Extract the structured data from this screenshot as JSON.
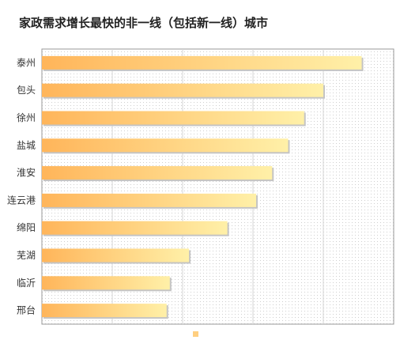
{
  "chart_data": {
    "type": "bar",
    "orientation": "horizontal",
    "title": "家政需求增长最快的非一线（包括新一线）城市",
    "categories": [
      "泰州",
      "包头",
      "徐州",
      "盐城",
      "淮安",
      "连云港",
      "绵阳",
      "芜湖",
      "临沂",
      "邢台"
    ],
    "values": [
      100,
      88,
      82,
      77,
      72,
      67,
      58,
      46,
      40,
      39
    ],
    "xlim": [
      0,
      110
    ],
    "grid": true,
    "legend": "bottom",
    "colors": {
      "bar_start": "#ffb55a",
      "bar_end": "#fff0a8",
      "legend_swatch": "#ffcf80"
    }
  }
}
